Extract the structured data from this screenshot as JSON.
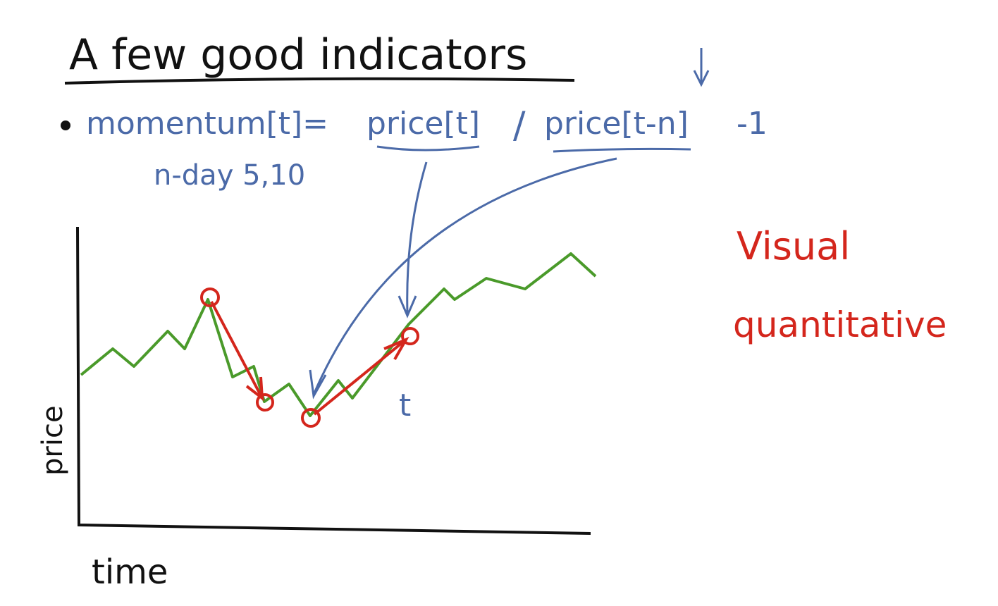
{
  "title": "A few good indicators",
  "formula": {
    "lhs": "momentum[t]=",
    "numerator": "price[t]",
    "divide": "/",
    "denominator": "price[t-n]",
    "tail": "-1",
    "note": "n-day 5,10"
  },
  "sketch": {
    "y_label": "price",
    "x_label": "time",
    "point_label": "t"
  },
  "notes": [
    "Visual",
    "quantitative"
  ]
}
